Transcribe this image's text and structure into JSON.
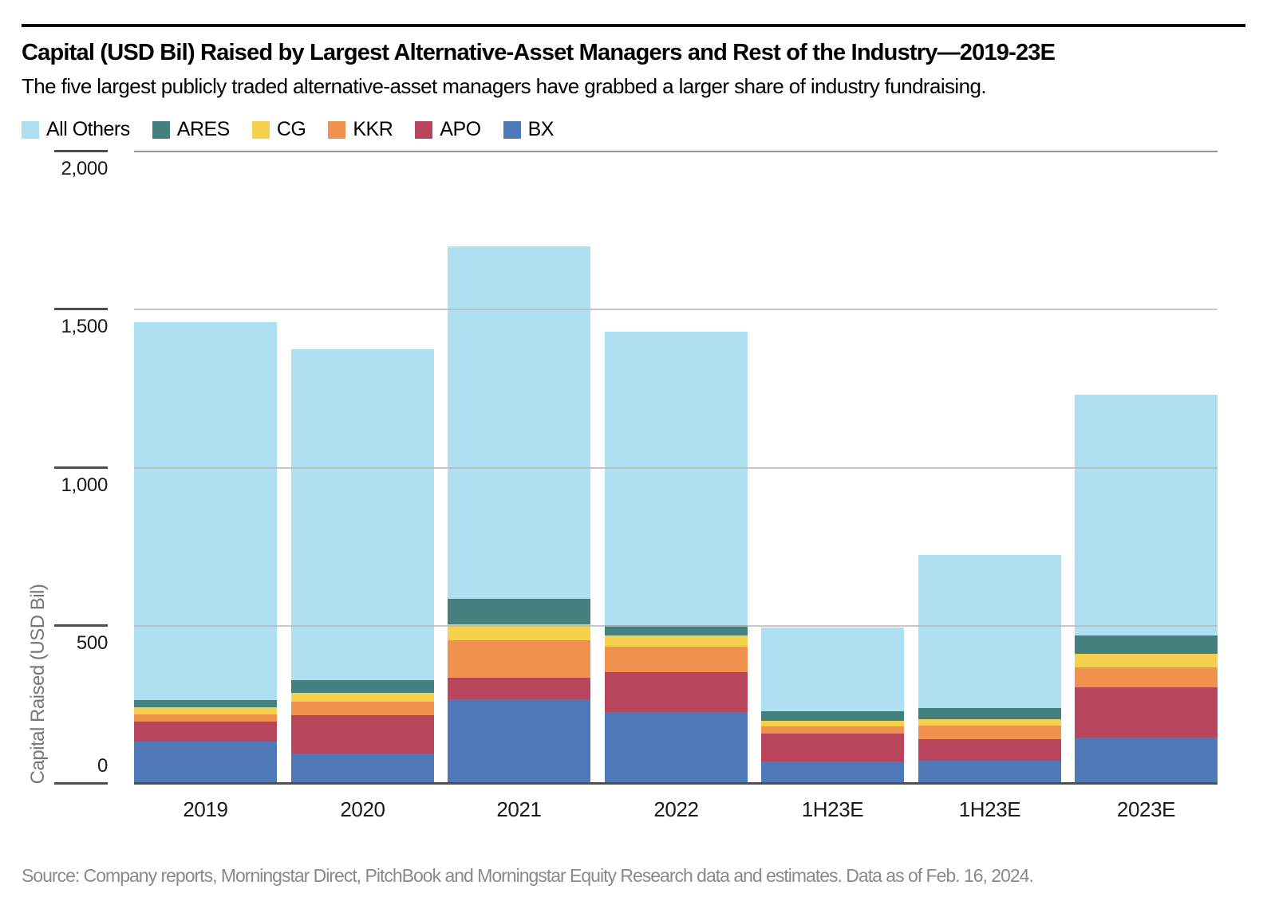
{
  "header": {
    "title": "Capital (USD Bil) Raised by Largest Alternative-Asset Managers and Rest of the Industry—2019-23E",
    "subtitle": "The five largest publicly traded alternative-asset managers have grabbed a larger share of industry fundraising."
  },
  "chart_data": {
    "type": "bar",
    "stacked": true,
    "title": "Capital (USD Bil) Raised by Largest Alternative-Asset Managers and Rest of the Industry—2019-23E",
    "categories": [
      "2019",
      "2020",
      "2021",
      "2022",
      "1H23E",
      "1H23E",
      "2023E"
    ],
    "series": [
      {
        "name": "BX",
        "color": "#4E78B8",
        "values": [
          134,
          97,
          268,
          226,
          70,
          73,
          147
        ]
      },
      {
        "name": "APO",
        "color": "#B8455C",
        "values": [
          63,
          121,
          67,
          126,
          88,
          69,
          159
        ]
      },
      {
        "name": "KKR",
        "color": "#F0914E",
        "values": [
          23,
          43,
          120,
          82,
          23,
          42,
          63
        ]
      },
      {
        "name": "CG",
        "color": "#F5D14E",
        "values": [
          21,
          27,
          50,
          34,
          19,
          21,
          43
        ]
      },
      {
        "name": "ARES",
        "color": "#44807E",
        "values": [
          25,
          39,
          80,
          34,
          29,
          34,
          56
        ]
      },
      {
        "name": "All Others",
        "color": "#AEE0F2",
        "values": [
          1194,
          1048,
          1115,
          928,
          266,
          486,
          762
        ]
      }
    ],
    "legend_order": [
      "All Others",
      "ARES",
      "CG",
      "KKR",
      "APO",
      "BX"
    ],
    "ylabel": "Capital Raised (USD Bil)",
    "yticks": [
      {
        "value": 0,
        "label": "0"
      },
      {
        "value": 500,
        "label": "500"
      },
      {
        "value": 1000,
        "label": "1,000"
      },
      {
        "value": 1500,
        "label": "1,500"
      },
      {
        "value": 2000,
        "label": "2,000"
      }
    ],
    "ylim": [
      0,
      2000
    ],
    "grid": "horizontal",
    "legend_position": "top"
  },
  "footer": {
    "source": "Source: Company reports, Morningstar Direct, PitchBook and Morningstar Equity Research data and estimates. Data as of Feb. 16, 2024."
  }
}
